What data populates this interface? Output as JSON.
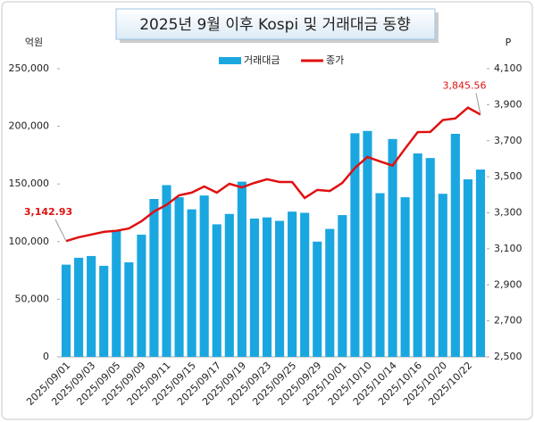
{
  "chart_data": {
    "type": "combo",
    "title": "2025년 9월 이후 Kospi 및 거래대금 동향",
    "y_label": "억원",
    "y2_label": "P",
    "categories": [
      "2025/09/01",
      null,
      "2025/09/03",
      null,
      "2025/09/05",
      null,
      "2025/09/09",
      null,
      "2025/09/11",
      null,
      "2025/09/15",
      null,
      "2025/09/17",
      null,
      "2025/09/19",
      null,
      "2025/09/23",
      null,
      "2025/09/25",
      null,
      "2025/09/29",
      null,
      "2025/10/01",
      null,
      "2025/10/10",
      null,
      "2025/10/14",
      null,
      "2025/10/16",
      null,
      "2025/10/20",
      null,
      "2025/10/22",
      null
    ],
    "series": [
      {
        "name": "거래대금",
        "type": "bar",
        "color": "#1aa7e0",
        "values": [
          80000,
          86000,
          87500,
          79000,
          110000,
          82000,
          106000,
          137000,
          149000,
          138500,
          128000,
          140000,
          115000,
          124000,
          152000,
          120000,
          121000,
          118000,
          126000,
          125000,
          100000,
          111000,
          123000,
          194000,
          196000,
          142000,
          189000,
          138500,
          176500,
          172500,
          141500,
          193500,
          154000,
          162500
        ]
      },
      {
        "name": "종가",
        "type": "line",
        "axis": "y2",
        "color": "#e01010",
        "values": [
          3142.93,
          3164,
          3179,
          3194,
          3200,
          3213,
          3253,
          3307,
          3344,
          3397,
          3412,
          3446,
          3412,
          3461,
          3441,
          3466,
          3486,
          3471,
          3471,
          3382,
          3427,
          3421,
          3466,
          3549,
          3610,
          3585,
          3562,
          3657,
          3748,
          3749,
          3815,
          3824,
          3884,
          3845.56
        ],
        "value_labels": [
          "3,142.93",
          null,
          null,
          null,
          null,
          null,
          null,
          null,
          null,
          null,
          null,
          null,
          null,
          null,
          null,
          null,
          null,
          null,
          null,
          null,
          null,
          null,
          null,
          null,
          null,
          null,
          null,
          null,
          null,
          null,
          null,
          null,
          null,
          "3,845.56"
        ]
      }
    ],
    "ylim": [
      0,
      250000
    ],
    "yticks": [
      0,
      {
        "value": 50000,
        "label": "50,000"
      },
      {
        "value": 100000,
        "label": "100,000"
      },
      {
        "value": 150000,
        "label": "150,000"
      },
      {
        "value": 200000,
        "label": "200,000"
      },
      {
        "value": 250000,
        "label": "250,000"
      }
    ],
    "y2lim": [
      2500,
      4100
    ],
    "y2ticks": [
      {
        "value": 2500,
        "label": "2,500"
      },
      {
        "value": 2700,
        "label": "2,700"
      },
      {
        "value": 2900,
        "label": "2,900"
      },
      {
        "value": 3100,
        "label": "3,100"
      },
      {
        "value": 3300,
        "label": "3,300"
      },
      {
        "value": 3500,
        "label": "3,500"
      },
      {
        "value": 3700,
        "label": "3,700"
      },
      {
        "value": 3900,
        "label": "3,900"
      },
      {
        "value": 4100,
        "label": "4,100"
      }
    ],
    "legend": "top",
    "grid": false
  }
}
